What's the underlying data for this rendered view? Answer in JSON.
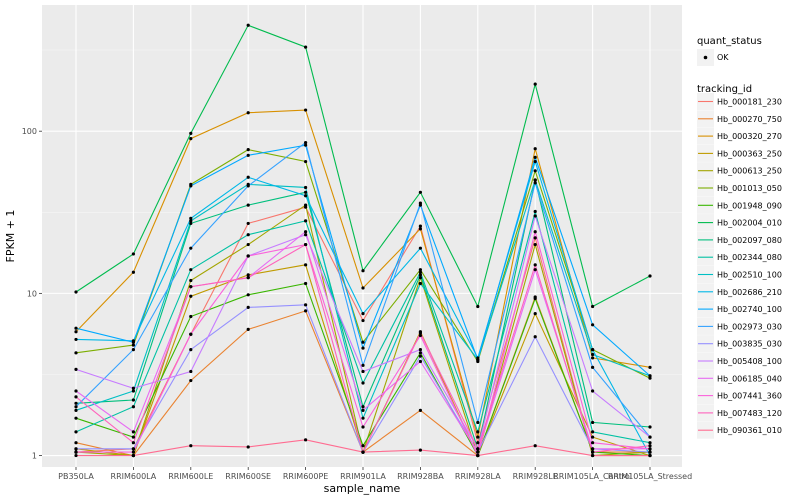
{
  "chart_data": {
    "type": "line",
    "xlabel": "sample_name",
    "ylabel": "FPKM + 1",
    "yscale": "log10",
    "ylim": [
      0.85,
      600
    ],
    "yticks": [
      1,
      10,
      100
    ],
    "grid": true,
    "legend_placement": "right",
    "categories": [
      "PB350LA",
      "RRIM600LA",
      "RRIM600LE",
      "RRIM600SE",
      "RRIM600PE",
      "RRIM901LA",
      "RRIM928BA",
      "RRIM928LA",
      "RRIM928LE",
      "RRIM105LA_Control",
      "RRIM105LA_Stressed"
    ],
    "legend_quant": {
      "title": "quant_status",
      "items": [
        "OK"
      ]
    },
    "legend_series_title": "tracking_id",
    "series": [
      {
        "name": "Hb_000181_230",
        "color": "#F8766D",
        "values": [
          1.05,
          1.1,
          5.6,
          27,
          34,
          6.8,
          26,
          1.2,
          22,
          1.0,
          1.0
        ]
      },
      {
        "name": "Hb_000270_750",
        "color": "#EA8331",
        "values": [
          1.2,
          1.0,
          2.9,
          6.0,
          7.8,
          1.05,
          1.9,
          1.0,
          9.5,
          1.05,
          1.05
        ]
      },
      {
        "name": "Hb_000320_270",
        "color": "#D89000",
        "values": [
          5.8,
          13.5,
          90,
          130,
          135,
          10.8,
          25,
          1.3,
          78,
          4.0,
          3.5
        ]
      },
      {
        "name": "Hb_000363_250",
        "color": "#C09B00",
        "values": [
          1.1,
          1.0,
          9.6,
          13,
          15,
          1.05,
          5.8,
          1.0,
          7.5,
          1.3,
          1.0
        ]
      },
      {
        "name": "Hb_000613_250",
        "color": "#A3A500",
        "values": [
          1.05,
          1.0,
          12,
          20,
          35,
          1.05,
          12.5,
          1.0,
          20,
          1.0,
          1.05
        ]
      },
      {
        "name": "Hb_001013_050",
        "color": "#7CAE00",
        "values": [
          4.3,
          4.8,
          47,
          77,
          65,
          5.0,
          14,
          3.8,
          57,
          4.5,
          3.0
        ]
      },
      {
        "name": "Hb_001948_090",
        "color": "#39B600",
        "values": [
          1.7,
          1.3,
          7.2,
          9.8,
          11.5,
          1.15,
          4.3,
          1.0,
          9.3,
          1.05,
          1.0
        ]
      },
      {
        "name": "Hb_002004_010",
        "color": "#00BB4E",
        "values": [
          10.2,
          17.5,
          97,
          450,
          330,
          13.8,
          42,
          8.3,
          195,
          8.3,
          12.8
        ]
      },
      {
        "name": "Hb_002097_080",
        "color": "#00BF7D",
        "values": [
          2.1,
          2.2,
          27,
          35,
          42,
          2.0,
          13,
          1.1,
          50,
          1.6,
          1.5
        ]
      },
      {
        "name": "Hb_002344_080",
        "color": "#00C1A3",
        "values": [
          1.4,
          2.0,
          14,
          23,
          28,
          2.8,
          13.5,
          1.4,
          32,
          1.4,
          1.2
        ]
      },
      {
        "name": "Hb_002510_100",
        "color": "#00BFC4",
        "values": [
          1.9,
          2.5,
          28,
          47,
          45,
          1.7,
          11.5,
          3.9,
          50,
          4.2,
          3.1
        ]
      },
      {
        "name": "Hb_002686_210",
        "color": "#00B8E7",
        "values": [
          5.2,
          5.1,
          29,
          52,
          40,
          7.5,
          19,
          4.0,
          65,
          4.5,
          1.0
        ]
      },
      {
        "name": "Hb_002740_100",
        "color": "#00A9FF",
        "values": [
          6.1,
          5.0,
          46,
          71,
          82,
          4.6,
          35,
          3.9,
          69,
          6.4,
          3.1
        ]
      },
      {
        "name": "Hb_002973_030",
        "color": "#35A2FF",
        "values": [
          2.0,
          4.5,
          19,
          46,
          85,
          3.6,
          36,
          1.6,
          48,
          3.5,
          1.3
        ]
      },
      {
        "name": "Hb_003835_030",
        "color": "#9590FF",
        "values": [
          1.1,
          1.1,
          4.5,
          8.2,
          8.5,
          1.05,
          4.1,
          1.05,
          5.4,
          1.1,
          1.05
        ]
      },
      {
        "name": "Hb_005408_100",
        "color": "#C77CFF",
        "values": [
          3.4,
          2.6,
          3.3,
          17,
          23,
          3.3,
          4.5,
          1.1,
          30,
          2.5,
          1.3
        ]
      },
      {
        "name": "Hb_006185_040",
        "color": "#E76BF3",
        "values": [
          2.5,
          1.4,
          11,
          12.5,
          24,
          1.9,
          3.8,
          1.05,
          14,
          1.1,
          1.1
        ]
      },
      {
        "name": "Hb_007441_360",
        "color": "#FA62DB",
        "values": [
          1.05,
          1.05,
          5.6,
          17,
          20,
          1.5,
          5.5,
          1.0,
          24,
          1.2,
          1.1
        ]
      },
      {
        "name": "Hb_007483_120",
        "color": "#FF62BC",
        "values": [
          2.3,
          1.2,
          11,
          12.5,
          20,
          1.05,
          5.7,
          1.1,
          15,
          1.05,
          1.15
        ]
      },
      {
        "name": "Hb_090361_010",
        "color": "#FF6C91",
        "values": [
          1.0,
          1.0,
          1.15,
          1.13,
          1.25,
          1.05,
          1.08,
          1.0,
          1.15,
          1.0,
          1.0
        ]
      }
    ]
  }
}
